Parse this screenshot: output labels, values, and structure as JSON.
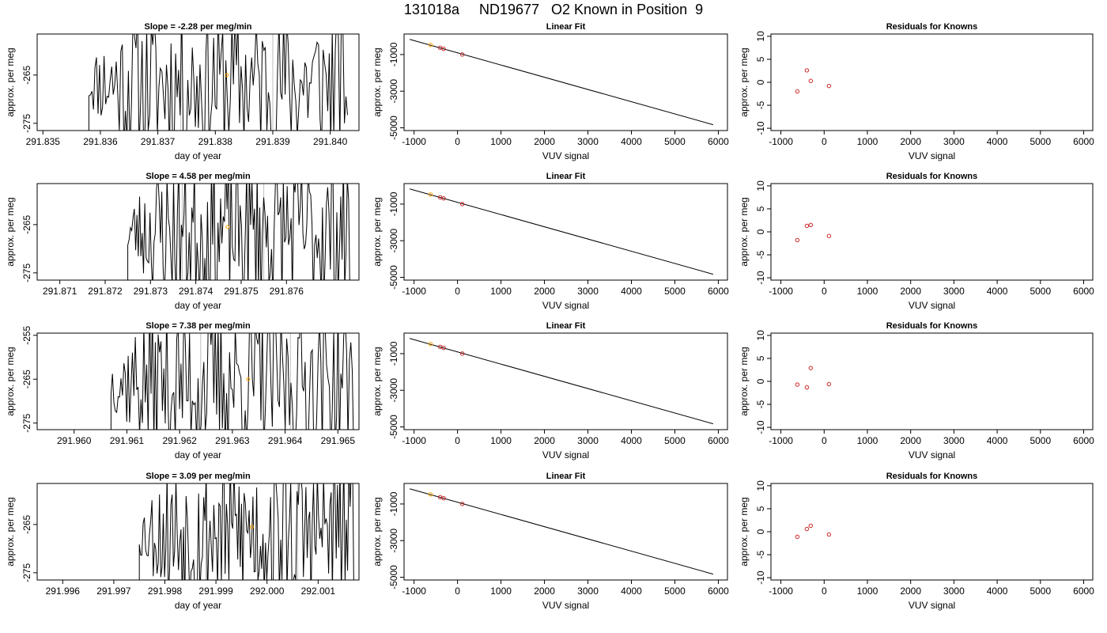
{
  "title": "131018a     ND19677   O2 Known in Position  9",
  "colors": {
    "trace": "#000000",
    "vline": "#bebebe",
    "known_point": "#cd2626",
    "highlight_point": "#ffa500",
    "frame": "#000000"
  },
  "chart_data": [
    {
      "panel": "time-1",
      "type": "line",
      "title": "Slope =  -2.28  per meg/min",
      "xlabel": "day of year",
      "ylabel": "approx. per meg",
      "xlim": [
        291.8349,
        291.8405
      ],
      "ylim": [
        -276.5,
        -256.5
      ],
      "xticks": [
        "291.835",
        "291.836",
        "291.837",
        "291.838",
        "291.839",
        "291.840"
      ],
      "xtick_values": [
        291.835,
        291.836,
        291.837,
        291.838,
        291.839,
        291.84
      ],
      "yticks": [
        "-275",
        "-265"
      ],
      "ytick_values": [
        -275,
        -265
      ],
      "trace_start": 291.8358,
      "trace_end": 291.8403,
      "vlines": [
        291.8374,
        291.839
      ],
      "highlight": {
        "x": 291.8382,
        "y": -265
      },
      "seed": 11
    },
    {
      "panel": "fit-1",
      "type": "line",
      "title": "Linear Fit",
      "xlabel": "VUV signal",
      "ylabel": "approx. per meg",
      "xlim": [
        -1230,
        6210
      ],
      "ylim": [
        -5150,
        120
      ],
      "xticks": [
        "-1000",
        "0",
        "1000",
        "2000",
        "3000",
        "4000",
        "5000",
        "6000"
      ],
      "xtick_values": [
        -1000,
        0,
        1000,
        2000,
        3000,
        4000,
        5000,
        6000
      ],
      "yticks": [
        "-5000",
        "-3000",
        "-1000"
      ],
      "ytick_values": [
        -5000,
        -3000,
        -1000
      ],
      "fit_line": {
        "x": [
          -1100,
          5880
        ],
        "y": [
          -170,
          -4830
        ]
      },
      "points": [
        {
          "x": -620,
          "y": -478,
          "color": "highlight"
        },
        {
          "x": -400,
          "y": -628,
          "color": "known"
        },
        {
          "x": -320,
          "y": -688,
          "color": "known"
        },
        {
          "x": 110,
          "y": -998,
          "color": "known"
        }
      ]
    },
    {
      "panel": "resid-1",
      "type": "scatter",
      "title": "Residuals for Knowns",
      "xlabel": "VUV signal",
      "ylabel": "approx. per meg",
      "xlim": [
        -1230,
        6210
      ],
      "ylim": [
        -10.5,
        10.5
      ],
      "xticks": [
        "-1000",
        "0",
        "1000",
        "2000",
        "3000",
        "4000",
        "5000",
        "6000"
      ],
      "xtick_values": [
        -1000,
        0,
        1000,
        2000,
        3000,
        4000,
        5000,
        6000
      ],
      "yticks": [
        "-10",
        "-5",
        "0",
        "5",
        "10"
      ],
      "ytick_values": [
        -10,
        -5,
        0,
        5,
        10
      ],
      "points": [
        {
          "x": -620,
          "y": -2.0
        },
        {
          "x": -400,
          "y": 2.6
        },
        {
          "x": -310,
          "y": 0.3
        },
        {
          "x": 110,
          "y": -0.8
        }
      ]
    },
    {
      "panel": "time-2",
      "type": "line",
      "title": "Slope =  4.58  per meg/min",
      "xlabel": "day of year",
      "ylabel": "approx. per meg",
      "xlim": [
        291.8705,
        291.8776
      ],
      "ylim": [
        -276.5,
        -256.5
      ],
      "xticks": [
        "291.871",
        "291.872",
        "291.873",
        "291.874",
        "291.875",
        "291.876"
      ],
      "xtick_values": [
        291.871,
        291.872,
        291.873,
        291.874,
        291.875,
        291.876
      ],
      "yticks": [
        "-275",
        "-265"
      ],
      "ytick_values": [
        -275,
        -265
      ],
      "trace_start": 291.8725,
      "trace_end": 291.8774,
      "vlines": [
        291.8737,
        291.8755
      ],
      "highlight": {
        "x": 291.8747,
        "y": -265.5
      },
      "seed": 23
    },
    {
      "panel": "fit-2",
      "type": "line",
      "title": "Linear Fit",
      "xlabel": "VUV signal",
      "ylabel": "approx. per meg",
      "xlim": [
        -1230,
        6210
      ],
      "ylim": [
        -5150,
        120
      ],
      "xticks": [
        "-1000",
        "0",
        "1000",
        "2000",
        "3000",
        "4000",
        "5000",
        "6000"
      ],
      "xtick_values": [
        -1000,
        0,
        1000,
        2000,
        3000,
        4000,
        5000,
        6000
      ],
      "yticks": [
        "-5000",
        "-3000",
        "-1000"
      ],
      "ytick_values": [
        -5000,
        -3000,
        -1000
      ],
      "fit_line": {
        "x": [
          -1100,
          5880
        ],
        "y": [
          -170,
          -4830
        ]
      },
      "points": [
        {
          "x": -620,
          "y": -478,
          "color": "highlight"
        },
        {
          "x": -400,
          "y": -628,
          "color": "known"
        },
        {
          "x": -320,
          "y": -688,
          "color": "known"
        },
        {
          "x": 110,
          "y": -998,
          "color": "known"
        }
      ]
    },
    {
      "panel": "resid-2",
      "type": "scatter",
      "title": "Residuals for Knowns",
      "xlabel": "VUV signal",
      "ylabel": "approx. per meg",
      "xlim": [
        -1230,
        6210
      ],
      "ylim": [
        -10.5,
        10.5
      ],
      "xticks": [
        "-1000",
        "0",
        "1000",
        "2000",
        "3000",
        "4000",
        "5000",
        "6000"
      ],
      "xtick_values": [
        -1000,
        0,
        1000,
        2000,
        3000,
        4000,
        5000,
        6000
      ],
      "yticks": [
        "-10",
        "-5",
        "0",
        "5",
        "10"
      ],
      "ytick_values": [
        -10,
        -5,
        0,
        5,
        10
      ],
      "points": [
        {
          "x": -620,
          "y": -1.8
        },
        {
          "x": -400,
          "y": 1.3
        },
        {
          "x": -310,
          "y": 1.5
        },
        {
          "x": 110,
          "y": -0.9
        }
      ]
    },
    {
      "panel": "time-3",
      "type": "line",
      "title": "Slope =  7.38  per meg/min",
      "xlabel": "day of year",
      "ylabel": "approx. per meg",
      "xlim": [
        291.9593,
        291.9654
      ],
      "ylim": [
        -276.5,
        -254.5
      ],
      "xticks": [
        "291.960",
        "291.961",
        "291.962",
        "291.963",
        "291.964",
        "291.965"
      ],
      "xtick_values": [
        291.96,
        291.961,
        291.962,
        291.963,
        291.964,
        291.965
      ],
      "yticks": [
        "-275",
        "-265",
        "-255"
      ],
      "ytick_values": [
        -275,
        -265,
        -255
      ],
      "trace_start": 291.9607,
      "trace_end": 291.9653,
      "vlines": [
        291.9624,
        291.9641
      ],
      "highlight": {
        "x": 291.9633,
        "y": -265
      },
      "seed": 37
    },
    {
      "panel": "fit-3",
      "type": "line",
      "title": "Linear Fit",
      "xlabel": "VUV signal",
      "ylabel": "approx. per meg",
      "xlim": [
        -1230,
        6210
      ],
      "ylim": [
        -5150,
        120
      ],
      "xticks": [
        "-1000",
        "0",
        "1000",
        "2000",
        "3000",
        "4000",
        "5000",
        "6000"
      ],
      "xtick_values": [
        -1000,
        0,
        1000,
        2000,
        3000,
        4000,
        5000,
        6000
      ],
      "yticks": [
        "-5000",
        "-3000",
        "-1000"
      ],
      "ytick_values": [
        -5000,
        -3000,
        -1000
      ],
      "fit_line": {
        "x": [
          -1100,
          5880
        ],
        "y": [
          -170,
          -4830
        ]
      },
      "points": [
        {
          "x": -620,
          "y": -478,
          "color": "highlight"
        },
        {
          "x": -400,
          "y": -628,
          "color": "known"
        },
        {
          "x": -320,
          "y": -688,
          "color": "known"
        },
        {
          "x": 110,
          "y": -998,
          "color": "known"
        }
      ]
    },
    {
      "panel": "resid-3",
      "type": "scatter",
      "title": "Residuals for Knowns",
      "xlabel": "VUV signal",
      "ylabel": "approx. per meg",
      "xlim": [
        -1230,
        6210
      ],
      "ylim": [
        -10.5,
        10.5
      ],
      "xticks": [
        "-1000",
        "0",
        "1000",
        "2000",
        "3000",
        "4000",
        "5000",
        "6000"
      ],
      "xtick_values": [
        -1000,
        0,
        1000,
        2000,
        3000,
        4000,
        5000,
        6000
      ],
      "yticks": [
        "-10",
        "-5",
        "0",
        "5",
        "10"
      ],
      "ytick_values": [
        -10,
        -5,
        0,
        5,
        10
      ],
      "points": [
        {
          "x": -620,
          "y": -0.7
        },
        {
          "x": -400,
          "y": -1.3
        },
        {
          "x": -310,
          "y": 2.9
        },
        {
          "x": 110,
          "y": -0.6
        }
      ]
    },
    {
      "panel": "time-4",
      "type": "line",
      "title": "Slope =  3.09  per meg/min",
      "xlabel": "day of year",
      "ylabel": "approx. per meg",
      "xlim": [
        291.9955,
        292.0018
      ],
      "ylim": [
        -276.5,
        -256.5
      ],
      "xticks": [
        "291.996",
        "291.997",
        "291.998",
        "291.999",
        "292.000",
        "292.001"
      ],
      "xtick_values": [
        291.996,
        291.997,
        291.998,
        291.999,
        292.0,
        292.001
      ],
      "yticks": [
        "-275",
        "-265"
      ],
      "ytick_values": [
        -275,
        -265
      ],
      "trace_start": 291.9975,
      "trace_end": 292.0017,
      "vlines": [
        291.9988,
        292.0006
      ],
      "highlight": {
        "x": 291.9997,
        "y": -265.5
      },
      "seed": 53
    },
    {
      "panel": "fit-4",
      "type": "line",
      "title": "Linear Fit",
      "xlabel": "VUV signal",
      "ylabel": "approx. per meg",
      "xlim": [
        -1230,
        6210
      ],
      "ylim": [
        -5150,
        120
      ],
      "xticks": [
        "-1000",
        "0",
        "1000",
        "2000",
        "3000",
        "4000",
        "5000",
        "6000"
      ],
      "xtick_values": [
        -1000,
        0,
        1000,
        2000,
        3000,
        4000,
        5000,
        6000
      ],
      "yticks": [
        "-5000",
        "-3000",
        "-1000"
      ],
      "ytick_values": [
        -5000,
        -3000,
        -1000
      ],
      "fit_line": {
        "x": [
          -1100,
          5880
        ],
        "y": [
          -170,
          -4830
        ]
      },
      "points": [
        {
          "x": -620,
          "y": -478,
          "color": "highlight"
        },
        {
          "x": -400,
          "y": -628,
          "color": "known"
        },
        {
          "x": -320,
          "y": -688,
          "color": "known"
        },
        {
          "x": 110,
          "y": -998,
          "color": "known"
        }
      ]
    },
    {
      "panel": "resid-4",
      "type": "scatter",
      "title": "Residuals for Knowns",
      "xlabel": "VUV signal",
      "ylabel": "approx. per meg",
      "xlim": [
        -1230,
        6210
      ],
      "ylim": [
        -10.5,
        10.5
      ],
      "xticks": [
        "-1000",
        "0",
        "1000",
        "2000",
        "3000",
        "4000",
        "5000",
        "6000"
      ],
      "xtick_values": [
        -1000,
        0,
        1000,
        2000,
        3000,
        4000,
        5000,
        6000
      ],
      "yticks": [
        "-10",
        "-5",
        "0",
        "5",
        "10"
      ],
      "ytick_values": [
        -10,
        -5,
        0,
        5,
        10
      ],
      "points": [
        {
          "x": -620,
          "y": -1.1
        },
        {
          "x": -400,
          "y": 0.6
        },
        {
          "x": -310,
          "y": 1.3
        },
        {
          "x": 110,
          "y": -0.6
        }
      ]
    }
  ]
}
